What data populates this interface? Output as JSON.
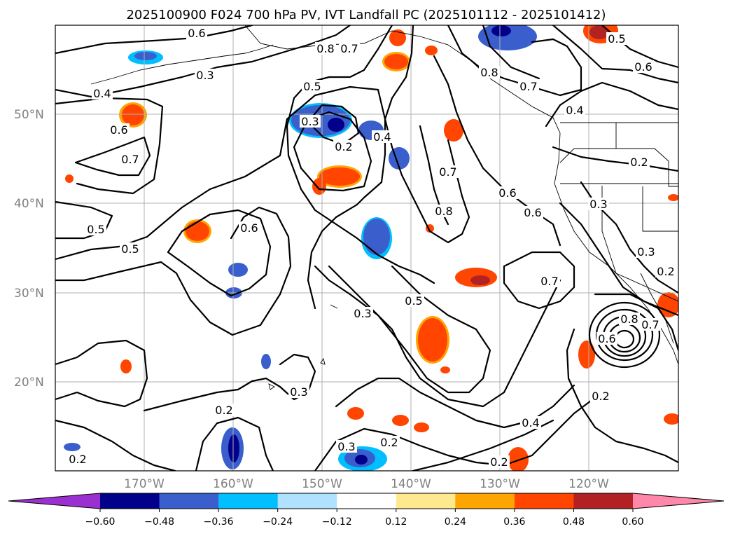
{
  "chart_data": {
    "type": "contour",
    "title": "2025100900 F024 700 hPa PV, IVT Landfall PC (2025101112 - 2025101412)",
    "lat_ticks": [
      "50°N",
      "40°N",
      "30°N",
      "20°N"
    ],
    "lon_ticks": [
      "170°W",
      "160°W",
      "150°W",
      "140°W",
      "130°W",
      "120°W"
    ],
    "colorbar": {
      "extend": "both",
      "ticks": [
        "−0.60",
        "−0.48",
        "−0.36",
        "−0.24",
        "−0.12",
        "0.12",
        "0.24",
        "0.36",
        "0.48",
        "0.60"
      ],
      "levels": [
        -0.6,
        -0.48,
        -0.36,
        -0.24,
        -0.12,
        0.12,
        0.24,
        0.36,
        0.48,
        0.6
      ],
      "colors": [
        "#9b30d0",
        "#00008b",
        "#3a5fcd",
        "#00bfff",
        "#b0e2ff",
        "#ffffff",
        "#ffe98f",
        "#ffa500",
        "#ff4500",
        "#b22222",
        "#ff88aa"
      ]
    },
    "contour_labels": [
      {
        "text": "0.6"
      },
      {
        "text": "0.8"
      },
      {
        "text": "0.7"
      },
      {
        "text": "0.3"
      },
      {
        "text": "0.5"
      },
      {
        "text": "0.4"
      },
      {
        "text": "0.6"
      },
      {
        "text": "0.7"
      },
      {
        "text": "0.3"
      },
      {
        "text": "0.2"
      },
      {
        "text": "0.4"
      },
      {
        "text": "0.7"
      },
      {
        "text": "0.8"
      },
      {
        "text": "0.6"
      },
      {
        "text": "0.6"
      },
      {
        "text": "0.8"
      },
      {
        "text": "0.7"
      },
      {
        "text": "0.4"
      },
      {
        "text": "0.5"
      },
      {
        "text": "0.6"
      },
      {
        "text": "0.2"
      },
      {
        "text": "0.3"
      },
      {
        "text": "0.3"
      },
      {
        "text": "0.2"
      },
      {
        "text": "0.5"
      },
      {
        "text": "0.5"
      },
      {
        "text": "0.6"
      },
      {
        "text": "0.7"
      },
      {
        "text": "0.3"
      },
      {
        "text": "0.5"
      },
      {
        "text": "0.3"
      },
      {
        "text": "0.2"
      },
      {
        "text": "0.3"
      },
      {
        "text": "0.2"
      },
      {
        "text": "0.2"
      },
      {
        "text": "0.4"
      },
      {
        "text": "0.2"
      },
      {
        "text": "0.6"
      },
      {
        "text": "0.8"
      },
      {
        "text": "0.7"
      },
      {
        "text": "0.2"
      }
    ]
  }
}
